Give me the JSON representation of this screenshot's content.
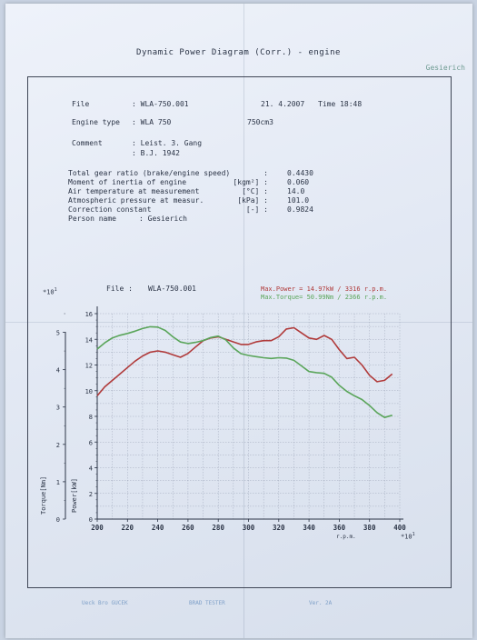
{
  "document": {
    "title": "Dynamic Power Diagram  (Corr.)  - engine",
    "company": "Gesierich"
  },
  "header": {
    "file_label": "File",
    "file_value": ":  WLA-750.001",
    "date": "21. 4.2007",
    "time": "Time 18:48",
    "engine_type_label": "Engine type",
    "engine_type_value": ":  WLA 750",
    "displacement": "750cm3",
    "comment_label": "Comment",
    "comment_line1": ":  Leist. 3. Gang",
    "comment_line2": ":  B.J. 1942"
  },
  "params": [
    {
      "label": "Total gear ratio (brake/engine speed)",
      "unit": ":",
      "value": "0.4430"
    },
    {
      "label": "Moment of inertia of engine",
      "unit": "[kgm²] :",
      "value": "0.060"
    },
    {
      "label": "Air temperature at measurement",
      "unit": "[°C] :",
      "value": "14.0"
    },
    {
      "label": "Atmospheric pressure at measur.",
      "unit": "[kPa] :",
      "value": "101.0"
    },
    {
      "label": "Correction constant",
      "unit": "[-] :",
      "value": "0.9824"
    }
  ],
  "person": {
    "label": "Person name",
    "value": ":  Gesierich"
  },
  "chart_header": {
    "file_label": "File :",
    "file_value": "WLA-750.001",
    "max_power": "Max.Power = 14.97kW /  3316 r.p.m.",
    "max_torque": "Max.Torque= 50.99Nm /  2366 r.p.m."
  },
  "colors": {
    "power": "#b03a3a",
    "torque": "#5aa55a"
  },
  "chart_data": {
    "type": "line",
    "x_unit_label": "r.p.m.",
    "x_multiplier": "*10",
    "x_multiplier_exp": "1",
    "y_multiplier": "*10",
    "y_multiplier_exp": "1",
    "xlim": [
      200,
      400
    ],
    "xticks": [
      "200",
      "220",
      "240",
      "260",
      "280",
      "300",
      "320",
      "340",
      "360",
      "380",
      "400"
    ],
    "power_axis_label": "Power[kW]",
    "power_ylim": [
      0,
      16
    ],
    "power_ticks": [
      "0",
      "2",
      "4",
      "6",
      "8",
      "10",
      "12",
      "14",
      "16"
    ],
    "torque_axis_label": "Torque[Nm]",
    "torque_ylim": [
      0,
      5.5
    ],
    "torque_ticks": [
      "0",
      "1",
      "2",
      "3",
      "4",
      "5"
    ],
    "series": [
      {
        "name": "Max.Power",
        "axis": "power",
        "x": [
          200,
          205,
          210,
          215,
          220,
          225,
          230,
          235,
          240,
          245,
          250,
          255,
          260,
          265,
          270,
          275,
          280,
          285,
          290,
          295,
          300,
          305,
          310,
          315,
          320,
          325,
          330,
          335,
          340,
          345,
          350,
          355,
          360,
          365,
          370,
          375,
          380,
          385,
          390,
          395
        ],
        "y": [
          9.6,
          10.3,
          10.8,
          11.3,
          11.8,
          12.3,
          12.7,
          13.0,
          13.1,
          13.0,
          12.8,
          12.6,
          12.9,
          13.4,
          13.9,
          14.1,
          14.2,
          14.0,
          13.8,
          13.6,
          13.6,
          13.8,
          13.9,
          13.9,
          14.2,
          14.8,
          14.9,
          14.5,
          14.1,
          14.0,
          14.3,
          14.0,
          13.2,
          12.5,
          12.6,
          12.0,
          11.2,
          10.7,
          10.8,
          11.3
        ]
      },
      {
        "name": "Max.Torque",
        "axis": "torque",
        "x": [
          200,
          205,
          210,
          215,
          220,
          225,
          230,
          235,
          240,
          245,
          250,
          255,
          260,
          265,
          270,
          275,
          280,
          285,
          290,
          295,
          300,
          305,
          310,
          315,
          320,
          325,
          330,
          335,
          340,
          345,
          350,
          355,
          360,
          365,
          370,
          375,
          380,
          385,
          390,
          395
        ],
        "y": [
          4.55,
          4.72,
          4.85,
          4.92,
          4.97,
          5.03,
          5.1,
          5.15,
          5.14,
          5.05,
          4.88,
          4.74,
          4.7,
          4.73,
          4.78,
          4.86,
          4.9,
          4.8,
          4.58,
          4.43,
          4.38,
          4.35,
          4.32,
          4.3,
          4.32,
          4.31,
          4.25,
          4.1,
          3.95,
          3.92,
          3.9,
          3.8,
          3.58,
          3.42,
          3.3,
          3.2,
          3.04,
          2.85,
          2.72,
          2.78
        ]
      }
    ]
  },
  "footer": {
    "left": "Ueck Bro GUCEK",
    "middle": "BRAD TESTER",
    "right": "Ver. 2A"
  }
}
